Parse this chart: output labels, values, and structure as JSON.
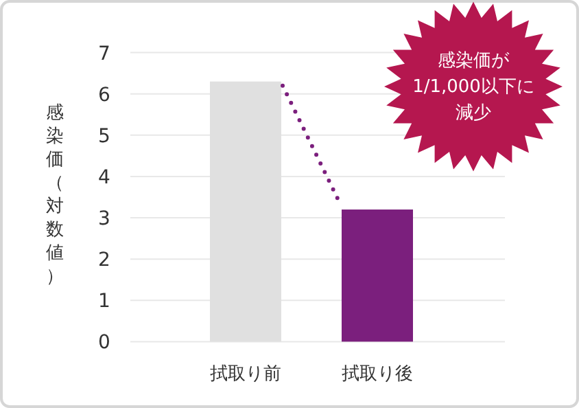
{
  "chart_data": {
    "type": "bar",
    "ylabel": "感染価（対数値）",
    "categories": [
      "拭取り前",
      "拭取り後"
    ],
    "values": [
      6.3,
      3.2
    ],
    "colors": [
      "#e0e0e0",
      "#7b1f7d"
    ],
    "ylim": [
      0,
      7
    ],
    "yticks": [
      0,
      1,
      2,
      3,
      4,
      5,
      6,
      7
    ],
    "grid": "y",
    "annotations": [
      "感染価が1/1,000以下に減少"
    ]
  }
}
